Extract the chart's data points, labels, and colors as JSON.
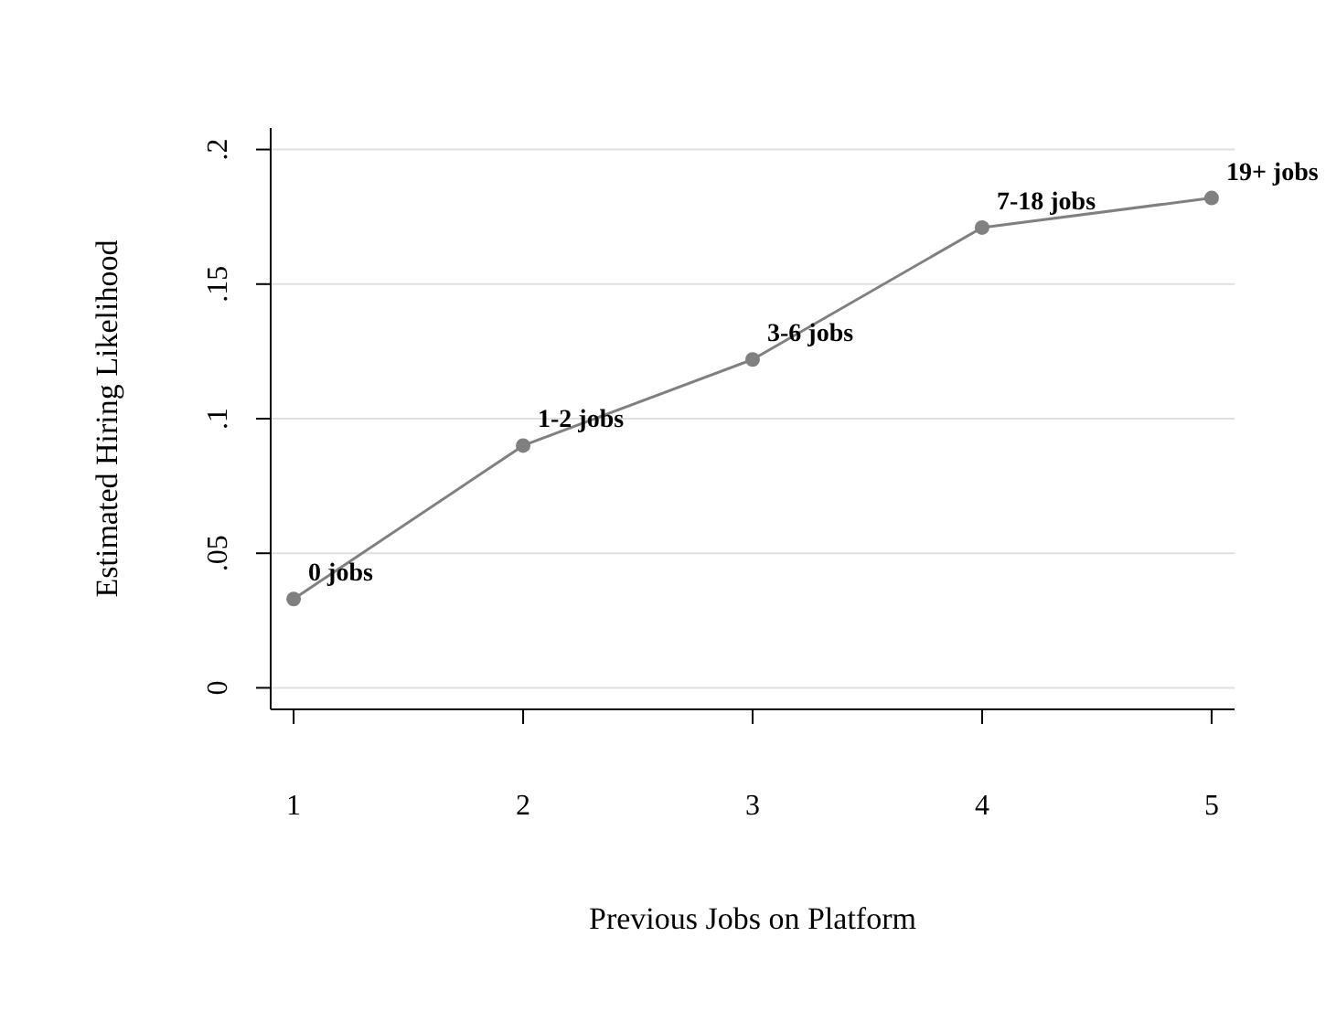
{
  "chart_data": {
    "type": "line",
    "xlabel": "Previous Jobs on Platform",
    "ylabel": "Estimated Hiring Likelihood",
    "x": [
      1,
      2,
      3,
      4,
      5
    ],
    "series": [
      {
        "color": "#808080",
        "values": [
          0.033,
          0.09,
          0.122,
          0.171,
          0.182
        ]
      }
    ],
    "xlim": [
      0.9,
      5.1
    ],
    "xticks": [
      1,
      2,
      3,
      4,
      5
    ],
    "ylim": [
      -0.008,
      0.208
    ],
    "yticks": [
      {
        "value": 0,
        "label": "0"
      },
      {
        "value": 0.05,
        "label": ".05"
      },
      {
        "value": 0.1,
        "label": ".1"
      },
      {
        "value": 0.15,
        "label": ".15"
      },
      {
        "value": 0.2,
        "label": ".2"
      }
    ],
    "grid": "y",
    "marker": "circle",
    "line_style": "solid",
    "annotations": [
      {
        "text": "0 jobs",
        "x": 1,
        "y": 0.033
      },
      {
        "text": "1-2 jobs",
        "x": 2,
        "y": 0.09
      },
      {
        "text": "3-6 jobs",
        "x": 3,
        "y": 0.122
      },
      {
        "text": "7-18 jobs",
        "x": 4,
        "y": 0.171
      },
      {
        "text": "19+ jobs",
        "x": 5,
        "y": 0.182
      }
    ]
  }
}
